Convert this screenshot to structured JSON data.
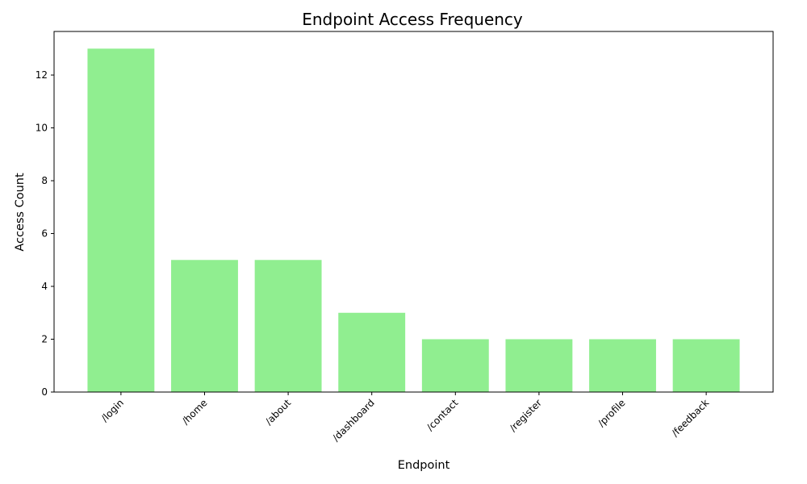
{
  "chart_data": {
    "type": "bar",
    "title": "Endpoint Access Frequency",
    "xlabel": "Endpoint",
    "ylabel": "Access Count",
    "categories": [
      "/login",
      "/home",
      "/about",
      "/dashboard",
      "/contact",
      "/register",
      "/profile",
      "/feedback"
    ],
    "values": [
      13,
      5,
      5,
      3,
      2,
      2,
      2,
      2
    ],
    "ylim": [
      0,
      13.65
    ],
    "yticks": [
      0,
      2,
      4,
      6,
      8,
      10,
      12
    ],
    "grid": false,
    "legend": "none",
    "colors": {
      "bar": "#90ee90",
      "axis": "#000000",
      "background": "#ffffff"
    }
  }
}
